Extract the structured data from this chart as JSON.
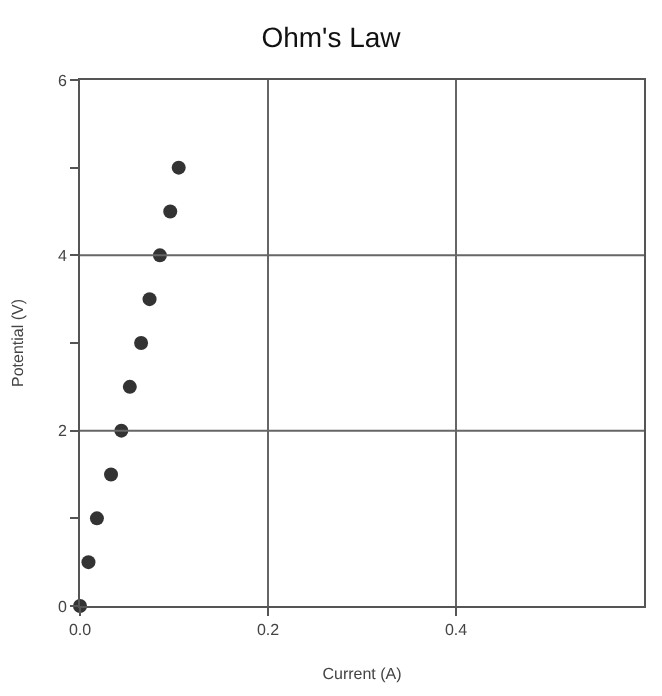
{
  "chart_data": {
    "type": "scatter",
    "title": "Ohm's Law",
    "xlabel": "Current (A)",
    "ylabel": "Potential (V)",
    "x": [
      0,
      0.009,
      0.018,
      0.033,
      0.044,
      0.053,
      0.065,
      0.074,
      0.085,
      0.096,
      0.105
    ],
    "values": [
      0,
      0.5,
      1,
      1.5,
      2,
      2.5,
      3,
      3.5,
      4,
      4.5,
      5
    ],
    "color": "#333333",
    "marker": "circle",
    "xlim": [
      0,
      0.6
    ],
    "xticks": [
      {
        "value": 0,
        "label": "0.0"
      },
      0.2,
      0.4
    ],
    "ylim": [
      0,
      6
    ],
    "yticks": [
      0,
      {
        "value": 1,
        "label": null
      },
      2,
      {
        "value": 3,
        "label": null
      },
      4,
      {
        "value": 5,
        "label": null
      },
      6
    ],
    "grid": true,
    "legend": false
  }
}
